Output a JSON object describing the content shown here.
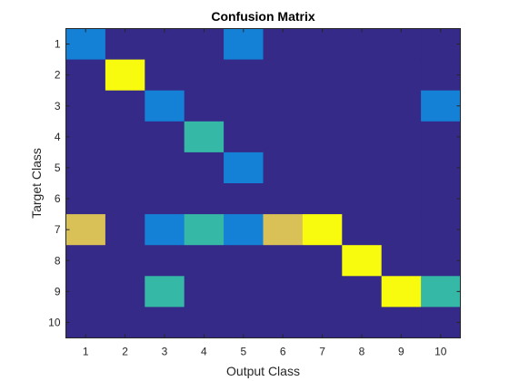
{
  "chart_data": {
    "type": "heatmap",
    "title": "Confusion Matrix",
    "xlabel": "Output Class",
    "ylabel": "Target Class",
    "x_categories": [
      "1",
      "2",
      "3",
      "4",
      "5",
      "6",
      "7",
      "8",
      "9",
      "10"
    ],
    "y_categories": [
      "1",
      "2",
      "3",
      "4",
      "5",
      "6",
      "7",
      "8",
      "9",
      "10"
    ],
    "values": [
      [
        1,
        0,
        0,
        0,
        1,
        0,
        0,
        0,
        0,
        0
      ],
      [
        0,
        3,
        0,
        0,
        0,
        0,
        0,
        0,
        0,
        0
      ],
      [
        0,
        0,
        1,
        0,
        0,
        0,
        0,
        0,
        0,
        1
      ],
      [
        0,
        0,
        0,
        1.5,
        0,
        0,
        0,
        0,
        0,
        0
      ],
      [
        0,
        0,
        0,
        0,
        1,
        0,
        0,
        0,
        0,
        0
      ],
      [
        0,
        0,
        0,
        0,
        0,
        0,
        0,
        0,
        0,
        0
      ],
      [
        2.5,
        0,
        1,
        1.5,
        1,
        2.5,
        3,
        0,
        0,
        0
      ],
      [
        0,
        0,
        0,
        0,
        0,
        0,
        0,
        3,
        0,
        0
      ],
      [
        0,
        0,
        1.5,
        0,
        0,
        0,
        0,
        0,
        3,
        1.5
      ],
      [
        0,
        0,
        0,
        0,
        0,
        0,
        0,
        0,
        0,
        0
      ]
    ],
    "value_range": [
      0,
      3
    ],
    "colormap": "parula",
    "colors": {
      "low": "#352a87",
      "mid_low": "#1481d6",
      "mid": "#35b8a6",
      "mid_high": "#d9c158",
      "high": "#f9fb0e",
      "axis": "#262626"
    },
    "grid": false,
    "legend": "none"
  }
}
